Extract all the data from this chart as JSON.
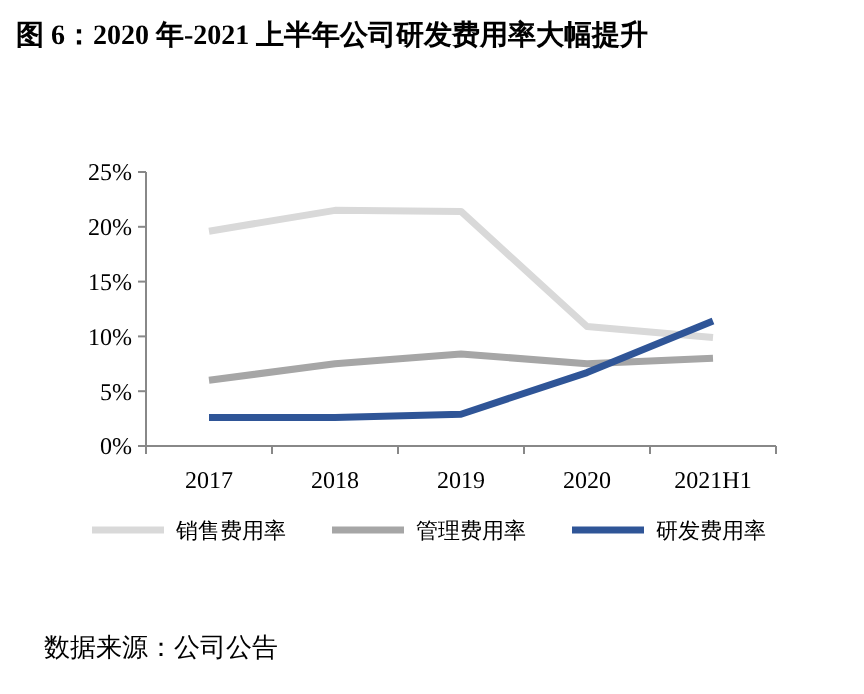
{
  "chart_data": {
    "type": "line",
    "title": "图 6：2020 年-2021 上半年公司研发费用率大幅提升",
    "categories": [
      "2017",
      "2018",
      "2019",
      "2020",
      "2021H1"
    ],
    "series": [
      {
        "name": "销售费用率",
        "color": "#d9d9d9",
        "values": [
          19.6,
          21.5,
          21.4,
          10.9,
          9.9
        ]
      },
      {
        "name": "管理费用率",
        "color": "#a6a6a6",
        "values": [
          6.0,
          7.5,
          8.4,
          7.5,
          8.0
        ]
      },
      {
        "name": "研发费用率",
        "color": "#2f5597",
        "values": [
          2.6,
          2.6,
          2.9,
          6.7,
          11.4
        ]
      }
    ],
    "ylim": [
      0,
      25
    ],
    "yticks": [
      {
        "value": 0,
        "label": "0%"
      },
      {
        "value": 5,
        "label": "5%"
      },
      {
        "value": 10,
        "label": "10%"
      },
      {
        "value": 15,
        "label": "15%"
      },
      {
        "value": 20,
        "label": "20%"
      },
      {
        "value": 25,
        "label": "25%"
      }
    ],
    "legend": "bottom",
    "grid": false,
    "marker": "none",
    "line_style": "solid",
    "annotations": [
      "数据来源：公司公告"
    ]
  }
}
